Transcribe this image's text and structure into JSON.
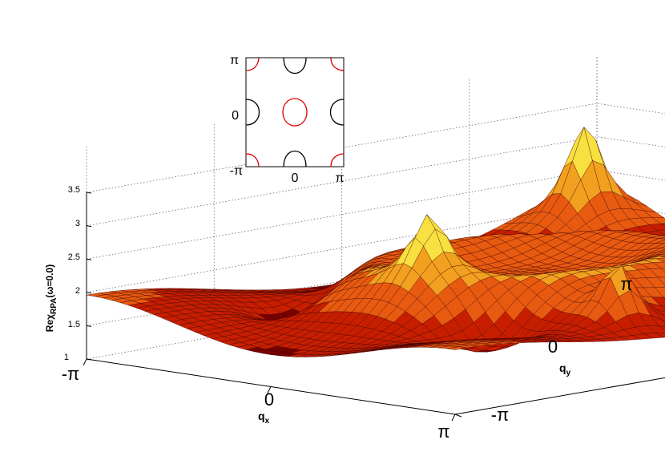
{
  "chart_data": {
    "type": "surface",
    "zlabel": {
      "main": "Reχ",
      "sub": "RPA",
      "tail": "(ω=0.0)"
    },
    "xlabel": {
      "main": "q",
      "sub": "x"
    },
    "ylabel": {
      "main": "q",
      "sub": "y"
    },
    "x_ticks": [
      "-π",
      "0",
      "π"
    ],
    "y_ticks": [
      "-π",
      "0",
      "π"
    ],
    "z_ticks": [
      "1",
      "1.5",
      "2",
      "2.5",
      "3",
      "3.5"
    ],
    "zlim": [
      1,
      3.5
    ],
    "grid": true,
    "colormap": [
      "#7a0000",
      "#c81e00",
      "#e85a10",
      "#f2a020",
      "#f8e040",
      "#ffffd0"
    ],
    "peaks": [
      {
        "qx": -2.6,
        "qy": 2.6,
        "value": 3.5
      },
      {
        "qx": 2.6,
        "qy": 2.6,
        "value": 3.6
      },
      {
        "qx": 0.3,
        "qy": -1.4,
        "value": 3.0
      },
      {
        "qx": 2.4,
        "qy": -0.6,
        "value": 3.0
      }
    ],
    "inset": {
      "x_ticks": [
        "-π",
        "0",
        "π"
      ],
      "y_ticks": [
        "-π",
        "0",
        "π"
      ],
      "series": [
        {
          "color": "#000000"
        },
        {
          "color": "#dd0000"
        }
      ]
    }
  }
}
